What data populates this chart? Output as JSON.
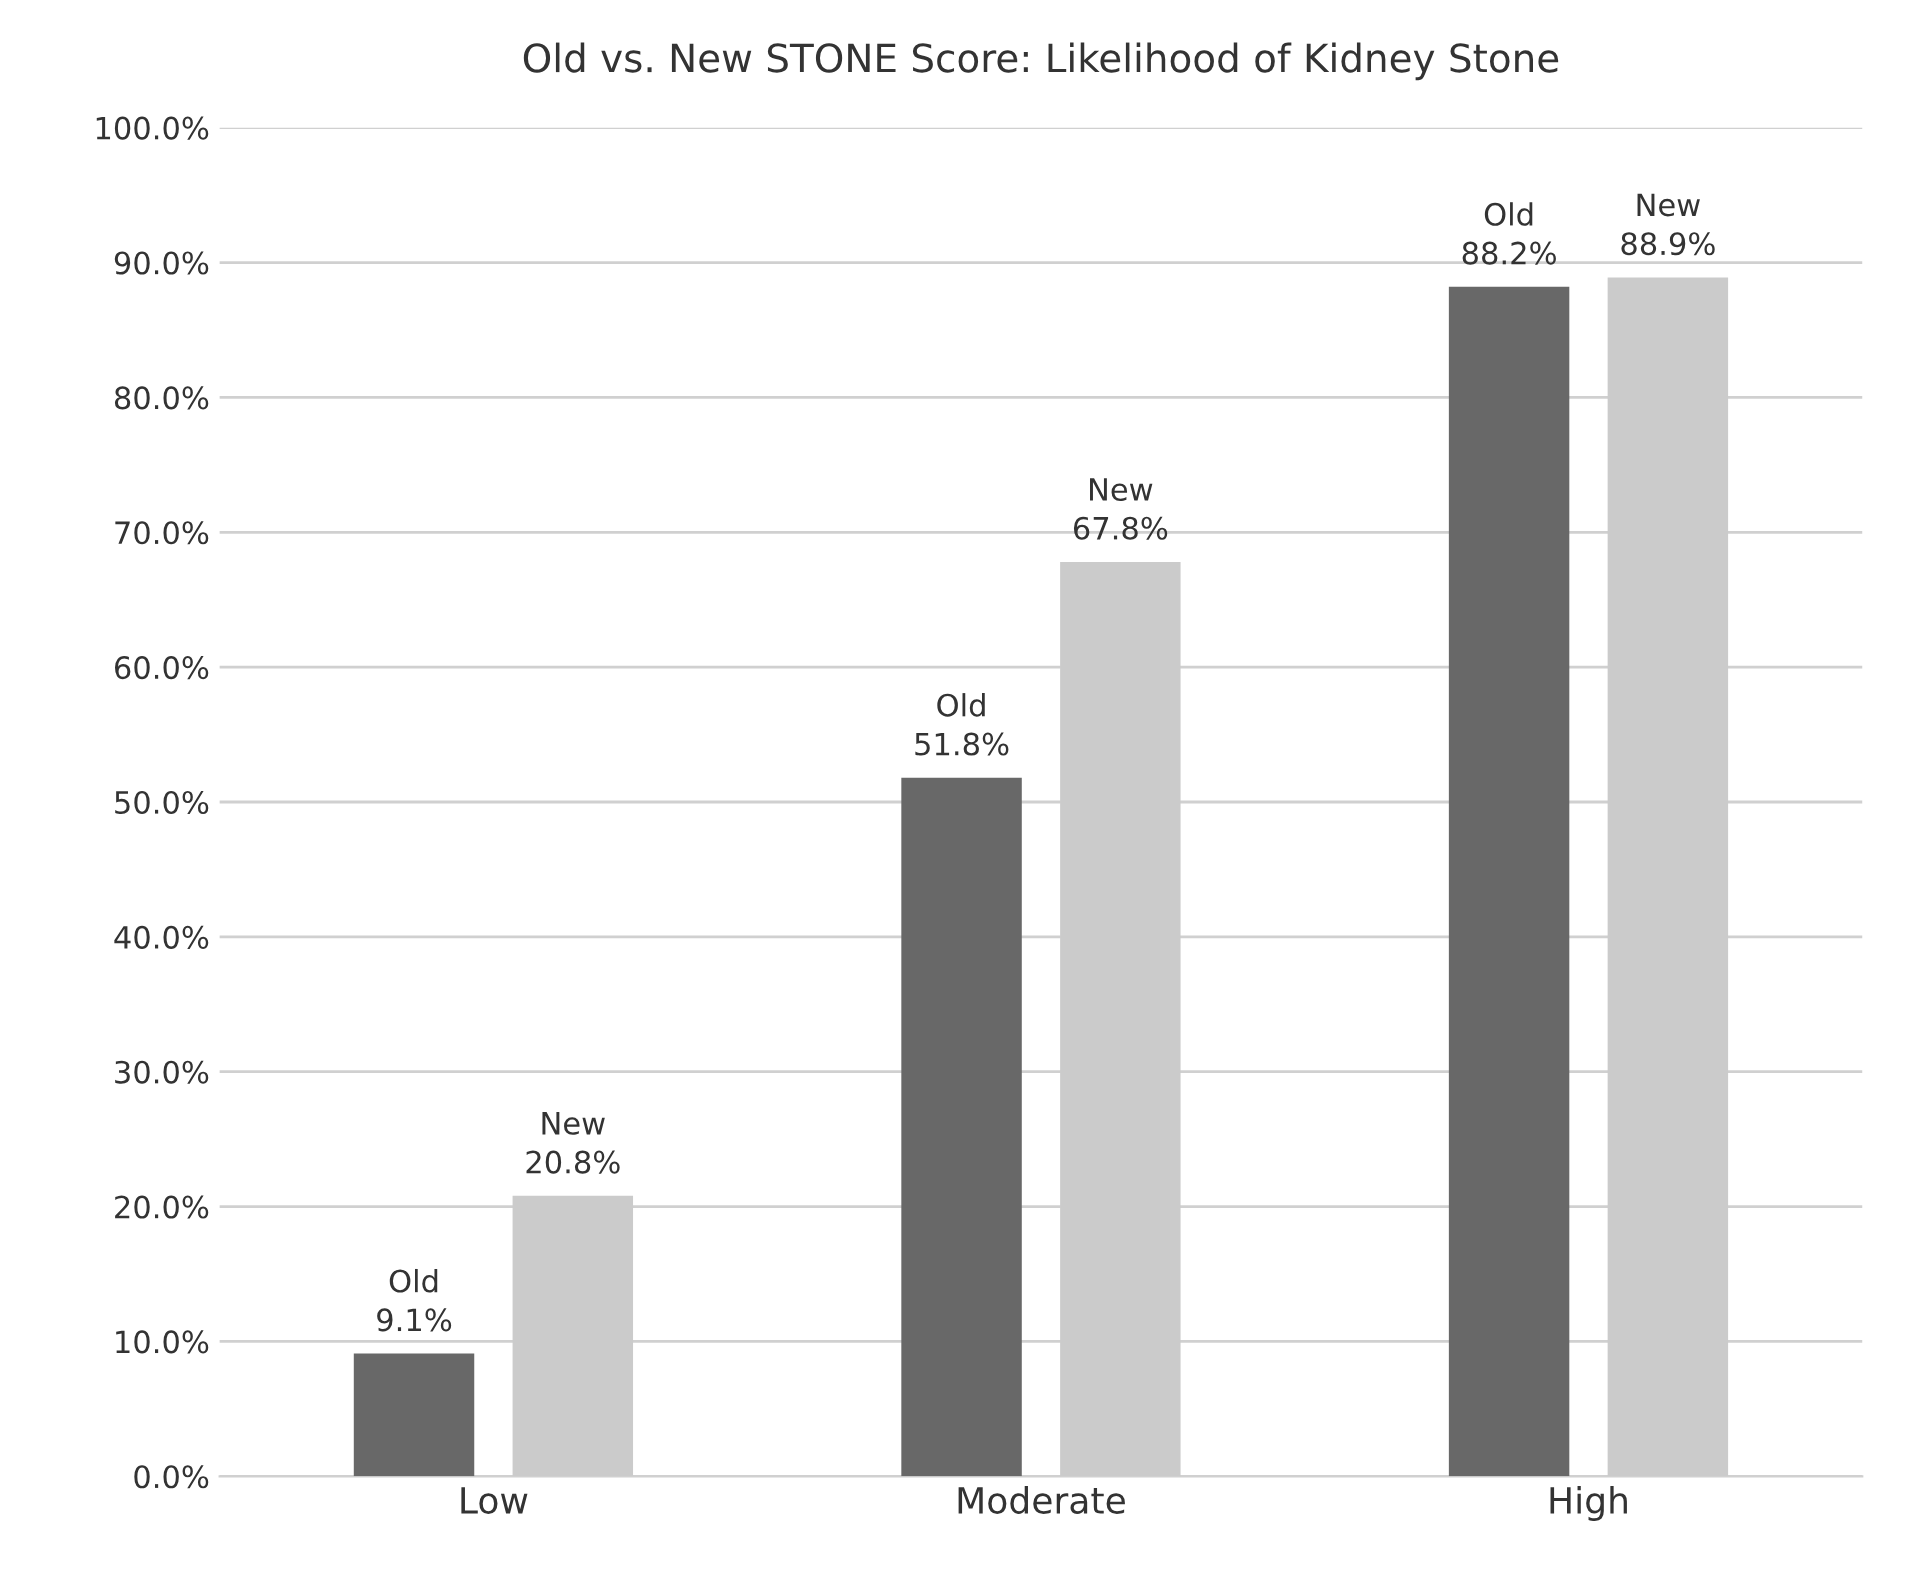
{
  "chart_data": {
    "type": "bar",
    "title": "Old vs. New STONE Score: Likelihood of Kidney Stone",
    "categories": [
      "Low",
      "Moderate",
      "High"
    ],
    "series": [
      {
        "name": "Old",
        "color": "#686868",
        "values": [
          9.1,
          51.8,
          88.2
        ],
        "value_labels": [
          "9.1%",
          "51.8%",
          "88.2%"
        ]
      },
      {
        "name": "New",
        "color": "#cbcbcb",
        "values": [
          20.8,
          67.8,
          88.9
        ],
        "value_labels": [
          "20.8%",
          "67.8%",
          "88.9%"
        ]
      }
    ],
    "ylim": [
      0,
      100
    ],
    "yticks": [
      {
        "value": 0,
        "label": "0.0%"
      },
      {
        "value": 10,
        "label": "10.0%"
      },
      {
        "value": 20,
        "label": "20.0%"
      },
      {
        "value": 30,
        "label": "30.0%"
      },
      {
        "value": 40,
        "label": "40.0%"
      },
      {
        "value": 50,
        "label": "50.0%"
      },
      {
        "value": 60,
        "label": "60.0%"
      },
      {
        "value": 70,
        "label": "70.0%"
      },
      {
        "value": 80,
        "label": "80.0%"
      },
      {
        "value": 90,
        "label": "90.0%"
      },
      {
        "value": 100,
        "label": "100.0%"
      }
    ],
    "grid": "y",
    "legend": false
  }
}
